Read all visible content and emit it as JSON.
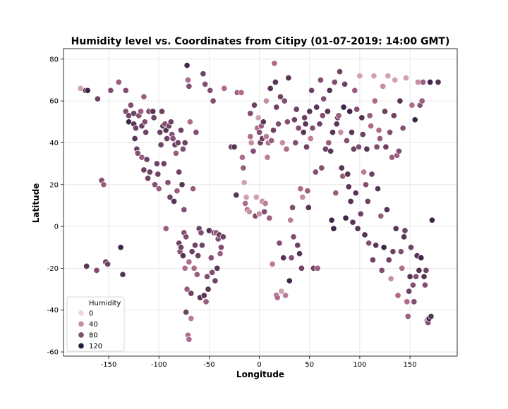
{
  "chart_data": {
    "type": "scatter",
    "title": "Humidity level vs. Coordinates from Citipy (01-07-2019: 14:00 GMT)",
    "xlabel": "Longitude",
    "ylabel": "Latitude",
    "xlim": [
      -195,
      197
    ],
    "ylim": [
      -62,
      85
    ],
    "xticks": [
      -150,
      -100,
      -50,
      0,
      50,
      100,
      150
    ],
    "yticks": [
      -60,
      -40,
      -20,
      0,
      20,
      40,
      60,
      80
    ],
    "grid": true,
    "legend": {
      "title": "Humidity",
      "placement": "lower-left",
      "entries": [
        {
          "label": "0",
          "value": 0
        },
        {
          "label": "40",
          "value": 40
        },
        {
          "label": "80",
          "value": 80
        },
        {
          "label": "120",
          "value": 120
        }
      ]
    },
    "color_scale": {
      "min": 0,
      "max": 120,
      "low_color": "#f1d7d0",
      "mid_color": "#b06a8c",
      "high_color": "#2a1a3a"
    },
    "points": [
      [
        -178,
        66,
        30
      ],
      [
        -173,
        65,
        100
      ],
      [
        -171,
        65,
        110
      ],
      [
        -161,
        61,
        90
      ],
      [
        -157,
        22,
        80
      ],
      [
        -155,
        20,
        70
      ],
      [
        -153,
        -17,
        90
      ],
      [
        -151,
        -18,
        90
      ],
      [
        -162,
        -21,
        80
      ],
      [
        -172,
        -19,
        100
      ],
      [
        -148,
        65,
        80
      ],
      [
        -140,
        69,
        70
      ],
      [
        -138,
        -10,
        110
      ],
      [
        -136,
        -23,
        100
      ],
      [
        -133,
        65,
        80
      ],
      [
        -133,
        55,
        80
      ],
      [
        -130,
        53,
        90
      ],
      [
        -130,
        50,
        110
      ],
      [
        -128,
        58,
        80
      ],
      [
        -125,
        54,
        90
      ],
      [
        -125,
        49,
        100
      ],
      [
        -124,
        42,
        100
      ],
      [
        -123,
        47,
        90
      ],
      [
        -122,
        37,
        90
      ],
      [
        -121,
        35,
        80
      ],
      [
        -120,
        53,
        80
      ],
      [
        -118,
        55,
        70
      ],
      [
        -117,
        48,
        90
      ],
      [
        -117,
        33,
        70
      ],
      [
        -115,
        62,
        70
      ],
      [
        -115,
        27,
        90
      ],
      [
        -114,
        50,
        80
      ],
      [
        -113,
        45,
        90
      ],
      [
        -112,
        32,
        90
      ],
      [
        -111,
        23,
        90
      ],
      [
        -110,
        55,
        80
      ],
      [
        -109,
        26,
        90
      ],
      [
        -106,
        55,
        100
      ],
      [
        -105,
        52,
        90
      ],
      [
        -104,
        20,
        80
      ],
      [
        -102,
        30,
        90
      ],
      [
        -101,
        25,
        90
      ],
      [
        -100,
        18,
        70
      ],
      [
        -99,
        45,
        90
      ],
      [
        -98,
        39,
        90
      ],
      [
        -97,
        55,
        90
      ],
      [
        -96,
        48,
        100
      ],
      [
        -95,
        30,
        90
      ],
      [
        -94,
        49,
        80
      ],
      [
        -93,
        -1,
        70
      ],
      [
        -93,
        46,
        100
      ],
      [
        -92,
        42,
        90
      ],
      [
        -91,
        21,
        80
      ],
      [
        -90,
        48,
        90
      ],
      [
        -89,
        14,
        90
      ],
      [
        -88,
        50,
        90
      ],
      [
        -87,
        44,
        80
      ],
      [
        -86,
        42,
        80
      ],
      [
        -85,
        12,
        100
      ],
      [
        -84,
        39,
        90
      ],
      [
        -83,
        35,
        70
      ],
      [
        -82,
        17,
        70
      ],
      [
        -81,
        40,
        90
      ],
      [
        -80,
        26,
        90
      ],
      [
        -80,
        -8,
        90
      ],
      [
        -79,
        -12,
        80
      ],
      [
        -78,
        46,
        90
      ],
      [
        -78,
        -10,
        90
      ],
      [
        -77,
        20,
        100
      ],
      [
        -76,
        37,
        80
      ],
      [
        -76,
        -14,
        100
      ],
      [
        -75,
        -3,
        80
      ],
      [
        -75,
        8,
        80
      ],
      [
        -74,
        -20,
        60
      ],
      [
        -74,
        40,
        90
      ],
      [
        -73,
        -5,
        80
      ],
      [
        -73,
        -41,
        90
      ],
      [
        -72,
        77,
        110
      ],
      [
        -72,
        -30,
        70
      ],
      [
        -71,
        70,
        60
      ],
      [
        -71,
        -52,
        60
      ],
      [
        -70,
        67,
        80
      ],
      [
        -70,
        -54,
        60
      ],
      [
        -70,
        -17,
        60
      ],
      [
        -69,
        50,
        60
      ],
      [
        -68,
        -32,
        90
      ],
      [
        -68,
        -44,
        50
      ],
      [
        -67,
        -12,
        90
      ],
      [
        -66,
        18,
        70
      ],
      [
        -65,
        -20,
        60
      ],
      [
        -64,
        -9,
        90
      ],
      [
        -63,
        45,
        80
      ],
      [
        -62,
        -23,
        70
      ],
      [
        -61,
        -14,
        90
      ],
      [
        -60,
        -1,
        90
      ],
      [
        -59,
        -34,
        100
      ],
      [
        -58,
        -3,
        80
      ],
      [
        -57,
        -9,
        90
      ],
      [
        -56,
        73,
        90
      ],
      [
        -55,
        -33,
        100
      ],
      [
        -54,
        68,
        80
      ],
      [
        -53,
        -36,
        70
      ],
      [
        -52,
        -24,
        80
      ],
      [
        -51,
        -30,
        100
      ],
      [
        -50,
        -2,
        100
      ],
      [
        -49,
        65,
        80
      ],
      [
        -48,
        -15,
        80
      ],
      [
        -47,
        -22,
        80
      ],
      [
        -46,
        60,
        80
      ],
      [
        -45,
        -3,
        90
      ],
      [
        -44,
        -26,
        90
      ],
      [
        -43,
        -3,
        70
      ],
      [
        -42,
        -20,
        100
      ],
      [
        -41,
        -6,
        80
      ],
      [
        -40,
        -4,
        90
      ],
      [
        -39,
        -13,
        70
      ],
      [
        -38,
        -10,
        80
      ],
      [
        -36,
        -5,
        90
      ],
      [
        -35,
        66,
        60
      ],
      [
        -28,
        38,
        90
      ],
      [
        -25,
        38,
        100
      ],
      [
        -23,
        15,
        100
      ],
      [
        -22,
        64,
        70
      ],
      [
        -18,
        64,
        60
      ],
      [
        -17,
        33,
        60
      ],
      [
        -16,
        28,
        70
      ],
      [
        -15,
        21,
        30
      ],
      [
        -14,
        11,
        60
      ],
      [
        -13,
        14,
        30
      ],
      [
        -12,
        8,
        60
      ],
      [
        -10,
        7,
        40
      ],
      [
        -9,
        54,
        80
      ],
      [
        -9,
        43,
        60
      ],
      [
        -8,
        40,
        40
      ],
      [
        -6,
        36,
        80
      ],
      [
        -5,
        58,
        90
      ],
      [
        -4,
        5,
        80
      ],
      [
        -3,
        14,
        30
      ],
      [
        -2,
        47,
        60
      ],
      [
        -1,
        52,
        30
      ],
      [
        0,
        6,
        40
      ],
      [
        0,
        45,
        80
      ],
      [
        1,
        40,
        90
      ],
      [
        2,
        48,
        70
      ],
      [
        3,
        42,
        90
      ],
      [
        3,
        12,
        40
      ],
      [
        4,
        50,
        100
      ],
      [
        5,
        7,
        80
      ],
      [
        6,
        11,
        50
      ],
      [
        7,
        43,
        50
      ],
      [
        7,
        60,
        40
      ],
      [
        8,
        33,
        50
      ],
      [
        9,
        40,
        60
      ],
      [
        10,
        4,
        70
      ],
      [
        11,
        66,
        100
      ],
      [
        12,
        41,
        70
      ],
      [
        13,
        -18,
        50
      ],
      [
        14,
        46,
        90
      ],
      [
        15,
        78,
        60
      ],
      [
        16,
        69,
        100
      ],
      [
        17,
        -33,
        70
      ],
      [
        17,
        57,
        90
      ],
      [
        18,
        -34,
        60
      ],
      [
        19,
        49,
        80
      ],
      [
        20,
        -8,
        80
      ],
      [
        21,
        62,
        90
      ],
      [
        22,
        -31,
        30
      ],
      [
        23,
        40,
        40
      ],
      [
        24,
        -15,
        100
      ],
      [
        25,
        60,
        80
      ],
      [
        26,
        -33,
        50
      ],
      [
        27,
        37,
        60
      ],
      [
        28,
        50,
        80
      ],
      [
        29,
        71,
        100
      ],
      [
        30,
        -26,
        110
      ],
      [
        31,
        3,
        50
      ],
      [
        32,
        -15,
        80
      ],
      [
        33,
        9,
        80
      ],
      [
        34,
        -5,
        80
      ],
      [
        35,
        51,
        90
      ],
      [
        36,
        40,
        80
      ],
      [
        37,
        56,
        90
      ],
      [
        38,
        -9,
        90
      ],
      [
        39,
        47,
        80
      ],
      [
        40,
        -13,
        100
      ],
      [
        41,
        18,
        60
      ],
      [
        42,
        -20,
        90
      ],
      [
        43,
        14,
        40
      ],
      [
        44,
        45,
        100
      ],
      [
        45,
        52,
        90
      ],
      [
        46,
        49,
        100
      ],
      [
        47,
        38,
        90
      ],
      [
        48,
        17,
        70
      ],
      [
        49,
        9,
        100
      ],
      [
        50,
        55,
        100
      ],
      [
        51,
        42,
        50
      ],
      [
        52,
        65,
        90
      ],
      [
        53,
        47,
        80
      ],
      [
        54,
        -20,
        90
      ],
      [
        56,
        26,
        80
      ],
      [
        57,
        57,
        100
      ],
      [
        58,
        -20,
        70
      ],
      [
        60,
        49,
        90
      ],
      [
        61,
        70,
        80
      ],
      [
        62,
        28,
        80
      ],
      [
        63,
        53,
        80
      ],
      [
        64,
        61,
        80
      ],
      [
        66,
        37,
        90
      ],
      [
        68,
        55,
        100
      ],
      [
        69,
        40,
        70
      ],
      [
        70,
        65,
        100
      ],
      [
        71,
        36,
        100
      ],
      [
        72,
        3,
        110
      ],
      [
        73,
        45,
        100
      ],
      [
        74,
        -1,
        110
      ],
      [
        75,
        69,
        80
      ],
      [
        76,
        16,
        70
      ],
      [
        77,
        49,
        100
      ],
      [
        78,
        52,
        90
      ],
      [
        79,
        53,
        70
      ],
      [
        80,
        74,
        90
      ],
      [
        81,
        45,
        40
      ],
      [
        82,
        28,
        100
      ],
      [
        83,
        24,
        70
      ],
      [
        84,
        57,
        110
      ],
      [
        85,
        68,
        90
      ],
      [
        86,
        4,
        110
      ],
      [
        87,
        41,
        80
      ],
      [
        88,
        25,
        100
      ],
      [
        89,
        19,
        100
      ],
      [
        90,
        55,
        110
      ],
      [
        91,
        12,
        100
      ],
      [
        92,
        45,
        100
      ],
      [
        93,
        2,
        100
      ],
      [
        94,
        37,
        90
      ],
      [
        95,
        65,
        70
      ],
      [
        96,
        16,
        100
      ],
      [
        97,
        56,
        80
      ],
      [
        98,
        -1,
        100
      ],
      [
        99,
        38,
        80
      ],
      [
        100,
        72,
        30
      ],
      [
        101,
        6,
        90
      ],
      [
        102,
        52,
        100
      ],
      [
        103,
        44,
        90
      ],
      [
        104,
        26,
        50
      ],
      [
        105,
        -4,
        100
      ],
      [
        106,
        20,
        80
      ],
      [
        107,
        37,
        100
      ],
      [
        108,
        12,
        90
      ],
      [
        109,
        -8,
        80
      ],
      [
        110,
        53,
        70
      ],
      [
        111,
        48,
        60
      ],
      [
        112,
        25,
        90
      ],
      [
        113,
        -16,
        90
      ],
      [
        114,
        72,
        30
      ],
      [
        115,
        60,
        60
      ],
      [
        116,
        -9,
        100
      ],
      [
        117,
        38,
        80
      ],
      [
        118,
        18,
        100
      ],
      [
        119,
        46,
        60
      ],
      [
        120,
        42,
        70
      ],
      [
        121,
        5,
        70
      ],
      [
        122,
        -21,
        80
      ],
      [
        123,
        67,
        40
      ],
      [
        124,
        -10,
        110
      ],
      [
        125,
        55,
        90
      ],
      [
        126,
        38,
        90
      ],
      [
        127,
        8,
        100
      ],
      [
        128,
        72,
        30
      ],
      [
        129,
        -16,
        90
      ],
      [
        130,
        45,
        80
      ],
      [
        131,
        -25,
        40
      ],
      [
        132,
        33,
        70
      ],
      [
        133,
        -12,
        90
      ],
      [
        134,
        53,
        90
      ],
      [
        135,
        70,
        30
      ],
      [
        136,
        -1,
        100
      ],
      [
        137,
        34,
        70
      ],
      [
        138,
        -33,
        60
      ],
      [
        139,
        36,
        80
      ],
      [
        140,
        60,
        100
      ],
      [
        141,
        -12,
        80
      ],
      [
        142,
        -20,
        60
      ],
      [
        143,
        47,
        80
      ],
      [
        144,
        -5,
        100
      ],
      [
        145,
        -2,
        90
      ],
      [
        146,
        71,
        30
      ],
      [
        147,
        -36,
        60
      ],
      [
        148,
        -43,
        70
      ],
      [
        149,
        -31,
        90
      ],
      [
        150,
        -24,
        100
      ],
      [
        151,
        -10,
        90
      ],
      [
        152,
        58,
        60
      ],
      [
        153,
        -28,
        80
      ],
      [
        154,
        -36,
        80
      ],
      [
        155,
        51,
        110
      ],
      [
        156,
        -24,
        80
      ],
      [
        157,
        -14,
        100
      ],
      [
        158,
        69,
        40
      ],
      [
        159,
        -21,
        100
      ],
      [
        160,
        58,
        80
      ],
      [
        161,
        -15,
        110
      ],
      [
        162,
        60,
        70
      ],
      [
        163,
        69,
        70
      ],
      [
        164,
        -24,
        100
      ],
      [
        165,
        -28,
        80
      ],
      [
        166,
        -21,
        90
      ],
      [
        167,
        -45,
        60
      ],
      [
        168,
        -46,
        80
      ],
      [
        169,
        -44,
        110
      ],
      [
        170,
        69,
        110
      ],
      [
        171,
        -43,
        100
      ],
      [
        172,
        3,
        110
      ],
      [
        178,
        69,
        100
      ]
    ]
  }
}
